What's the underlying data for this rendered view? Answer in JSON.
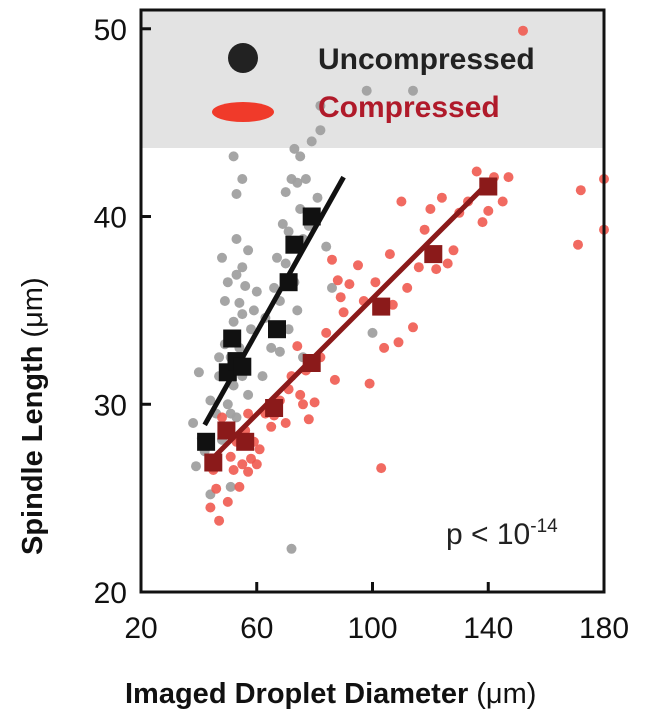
{
  "chart_data": {
    "type": "scatter",
    "xlabel": "Imaged Droplet Diameter",
    "xlabel_unit": "(μm)",
    "ylabel": "Spindle Length",
    "ylabel_unit": "(μm)",
    "xlim": [
      20,
      180
    ],
    "ylim": [
      20,
      51
    ],
    "x_ticks": [
      "20",
      "60",
      "100",
      "140",
      "180"
    ],
    "y_ticks": [
      "20",
      "30",
      "40",
      "50"
    ],
    "legend_position": "top",
    "annotation": {
      "prefix": "p < 10",
      "exponent": "-14"
    },
    "series": [
      {
        "name": "Uncompressed",
        "color": "#111111",
        "point_color": "#a0a0a0",
        "raw_points": [
          [
            38,
            29
          ],
          [
            39,
            26.7
          ],
          [
            40,
            31.7
          ],
          [
            41,
            28.2
          ],
          [
            42,
            27.5
          ],
          [
            44,
            30.2
          ],
          [
            44,
            25.2
          ],
          [
            45,
            26.6
          ],
          [
            46,
            29.5
          ],
          [
            47,
            31.5
          ],
          [
            47,
            32.5
          ],
          [
            48,
            28.1
          ],
          [
            48,
            37.8
          ],
          [
            49,
            33.2
          ],
          [
            49,
            35.5
          ],
          [
            50,
            30
          ],
          [
            50,
            36.5
          ],
          [
            51,
            32.5
          ],
          [
            51,
            29.5
          ],
          [
            51,
            25.6
          ],
          [
            52,
            43.2
          ],
          [
            52,
            34.4
          ],
          [
            52,
            31
          ],
          [
            53,
            38.8
          ],
          [
            53,
            36.9
          ],
          [
            53,
            41.2
          ],
          [
            53,
            29.3
          ],
          [
            54,
            35.4
          ],
          [
            54,
            33
          ],
          [
            54,
            28
          ],
          [
            55,
            42
          ],
          [
            55,
            37.3
          ],
          [
            55,
            34.8
          ],
          [
            55,
            31.5
          ],
          [
            56,
            36.3
          ],
          [
            56,
            32
          ],
          [
            57,
            30.5
          ],
          [
            57,
            38.2
          ],
          [
            58,
            34
          ],
          [
            59,
            35
          ],
          [
            60,
            36
          ],
          [
            62,
            31.5
          ],
          [
            63,
            34.6
          ],
          [
            65,
            33
          ],
          [
            66,
            36.2
          ],
          [
            67,
            37.8
          ],
          [
            68,
            35.5
          ],
          [
            68,
            32.8
          ],
          [
            69,
            39.6
          ],
          [
            70,
            41.3
          ],
          [
            70,
            37.5
          ],
          [
            71,
            39.2
          ],
          [
            71,
            34
          ],
          [
            72,
            42
          ],
          [
            72,
            38.4
          ],
          [
            72,
            22.3
          ],
          [
            73,
            43.6
          ],
          [
            73,
            36.5
          ],
          [
            74,
            41.8
          ],
          [
            74,
            35
          ],
          [
            75,
            40.4
          ],
          [
            75,
            43.2
          ],
          [
            76,
            38.8
          ],
          [
            76,
            32.5
          ],
          [
            77,
            42
          ],
          [
            78,
            39.5
          ],
          [
            79,
            44
          ],
          [
            80,
            40.2
          ],
          [
            81,
            41
          ],
          [
            82,
            45.9
          ],
          [
            82,
            44.6
          ],
          [
            84,
            38.4
          ],
          [
            86,
            36.2
          ],
          [
            98,
            46.7
          ],
          [
            114,
            46.7
          ],
          [
            100,
            33.8
          ]
        ],
        "binned_means": [
          [
            42.5,
            28
          ],
          [
            50,
            31.7
          ],
          [
            51.5,
            33.5
          ],
          [
            53,
            32.3
          ],
          [
            55,
            32
          ],
          [
            67,
            34
          ],
          [
            71,
            36.5
          ],
          [
            73,
            38.5
          ],
          [
            79,
            40
          ]
        ],
        "fit_line": [
          [
            42,
            28.9
          ],
          [
            90,
            42.1
          ]
        ]
      },
      {
        "name": "Compressed",
        "color": "#8b1a1a",
        "point_color": "#f05a50",
        "raw_points": [
          [
            44,
            24.5
          ],
          [
            45,
            26.5
          ],
          [
            46,
            25.5
          ],
          [
            47,
            23.8
          ],
          [
            48,
            29.3
          ],
          [
            49,
            28.4
          ],
          [
            50,
            24.8
          ],
          [
            51,
            27.2
          ],
          [
            52,
            26.5
          ],
          [
            53,
            28
          ],
          [
            54,
            25.6
          ],
          [
            55,
            26.8
          ],
          [
            56,
            28.6
          ],
          [
            57,
            29.5
          ],
          [
            57,
            26.4
          ],
          [
            58,
            27.1
          ],
          [
            59,
            28
          ],
          [
            60,
            26.8
          ],
          [
            61,
            27.6
          ],
          [
            63,
            29.5
          ],
          [
            65,
            28.8
          ],
          [
            66,
            29.4
          ],
          [
            68,
            30.2
          ],
          [
            70,
            29
          ],
          [
            71,
            30.8
          ],
          [
            72,
            31.5
          ],
          [
            74,
            33.1
          ],
          [
            75,
            30.5
          ],
          [
            76,
            30
          ],
          [
            77,
            31.8
          ],
          [
            78,
            29.2
          ],
          [
            80,
            30.1
          ],
          [
            82,
            32.5
          ],
          [
            84,
            33.8
          ],
          [
            86,
            37.7
          ],
          [
            87,
            31.3
          ],
          [
            88,
            36.6
          ],
          [
            89,
            35.7
          ],
          [
            90,
            34.9
          ],
          [
            92,
            36.4
          ],
          [
            95,
            37.4
          ],
          [
            97,
            35.5
          ],
          [
            99,
            31.1
          ],
          [
            101,
            36.5
          ],
          [
            103,
            26.6
          ],
          [
            104,
            33
          ],
          [
            106,
            38
          ],
          [
            107,
            35.3
          ],
          [
            109,
            33.3
          ],
          [
            110,
            40.8
          ],
          [
            112,
            36.2
          ],
          [
            114,
            34.1
          ],
          [
            116,
            37.3
          ],
          [
            118,
            39.3
          ],
          [
            120,
            40.4
          ],
          [
            122,
            37.2
          ],
          [
            124,
            41
          ],
          [
            126,
            37.5
          ],
          [
            128,
            38.2
          ],
          [
            130,
            40.2
          ],
          [
            133,
            40.8
          ],
          [
            136,
            42.4
          ],
          [
            138,
            39.7
          ],
          [
            140,
            40.3
          ],
          [
            142,
            42.1
          ],
          [
            145,
            40.8
          ],
          [
            147,
            42.1
          ],
          [
            152,
            49.9
          ],
          [
            171,
            38.5
          ],
          [
            172,
            41.4
          ],
          [
            180,
            42
          ],
          [
            180,
            39.3
          ]
        ],
        "binned_means": [
          [
            45,
            26.9
          ],
          [
            49.5,
            28.6
          ],
          [
            56,
            28
          ],
          [
            66,
            29.8
          ],
          [
            79,
            32.2
          ],
          [
            103,
            35.2
          ],
          [
            121,
            38
          ],
          [
            140,
            41.6
          ]
        ],
        "fit_line": [
          [
            44,
            27
          ],
          [
            140,
            41.8
          ]
        ]
      }
    ]
  }
}
